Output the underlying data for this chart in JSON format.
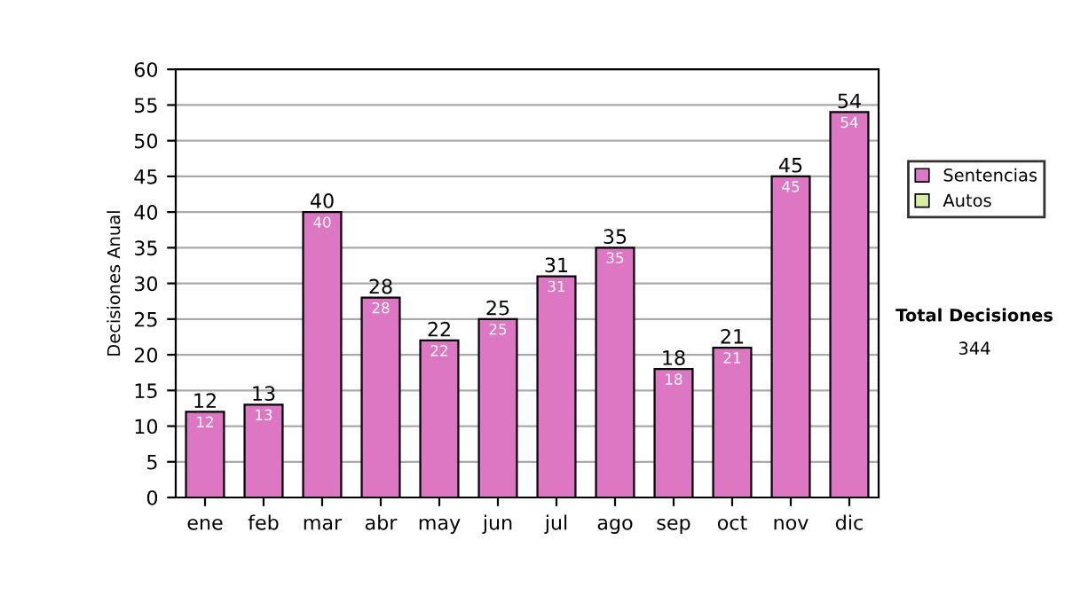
{
  "chart_data": {
    "type": "bar",
    "ylabel": "Decisiones Anual",
    "categories": [
      "ene",
      "feb",
      "mar",
      "abr",
      "may",
      "jun",
      "jul",
      "ago",
      "sep",
      "oct",
      "nov",
      "dic"
    ],
    "series": [
      {
        "name": "Sentencias",
        "color": "#dd77c4",
        "values": [
          12,
          13,
          40,
          28,
          22,
          25,
          31,
          35,
          18,
          21,
          45,
          54
        ]
      },
      {
        "name": "Autos",
        "color": "#d9eea0",
        "values": [
          null,
          null,
          null,
          null,
          null,
          null,
          null,
          null,
          null,
          null,
          null,
          null
        ]
      }
    ],
    "ylim": [
      0,
      60
    ],
    "yticks": [
      0,
      5,
      10,
      15,
      20,
      25,
      30,
      35,
      40,
      45,
      50,
      55,
      60
    ],
    "grid": "y",
    "legend": "right",
    "data_labels": true,
    "totals": [
      "12",
      "13",
      "40",
      "28",
      "22",
      "25",
      "31",
      "35",
      "18",
      "21",
      "45",
      "54"
    ],
    "annotations": [
      "Total Decisiones",
      "344"
    ]
  }
}
